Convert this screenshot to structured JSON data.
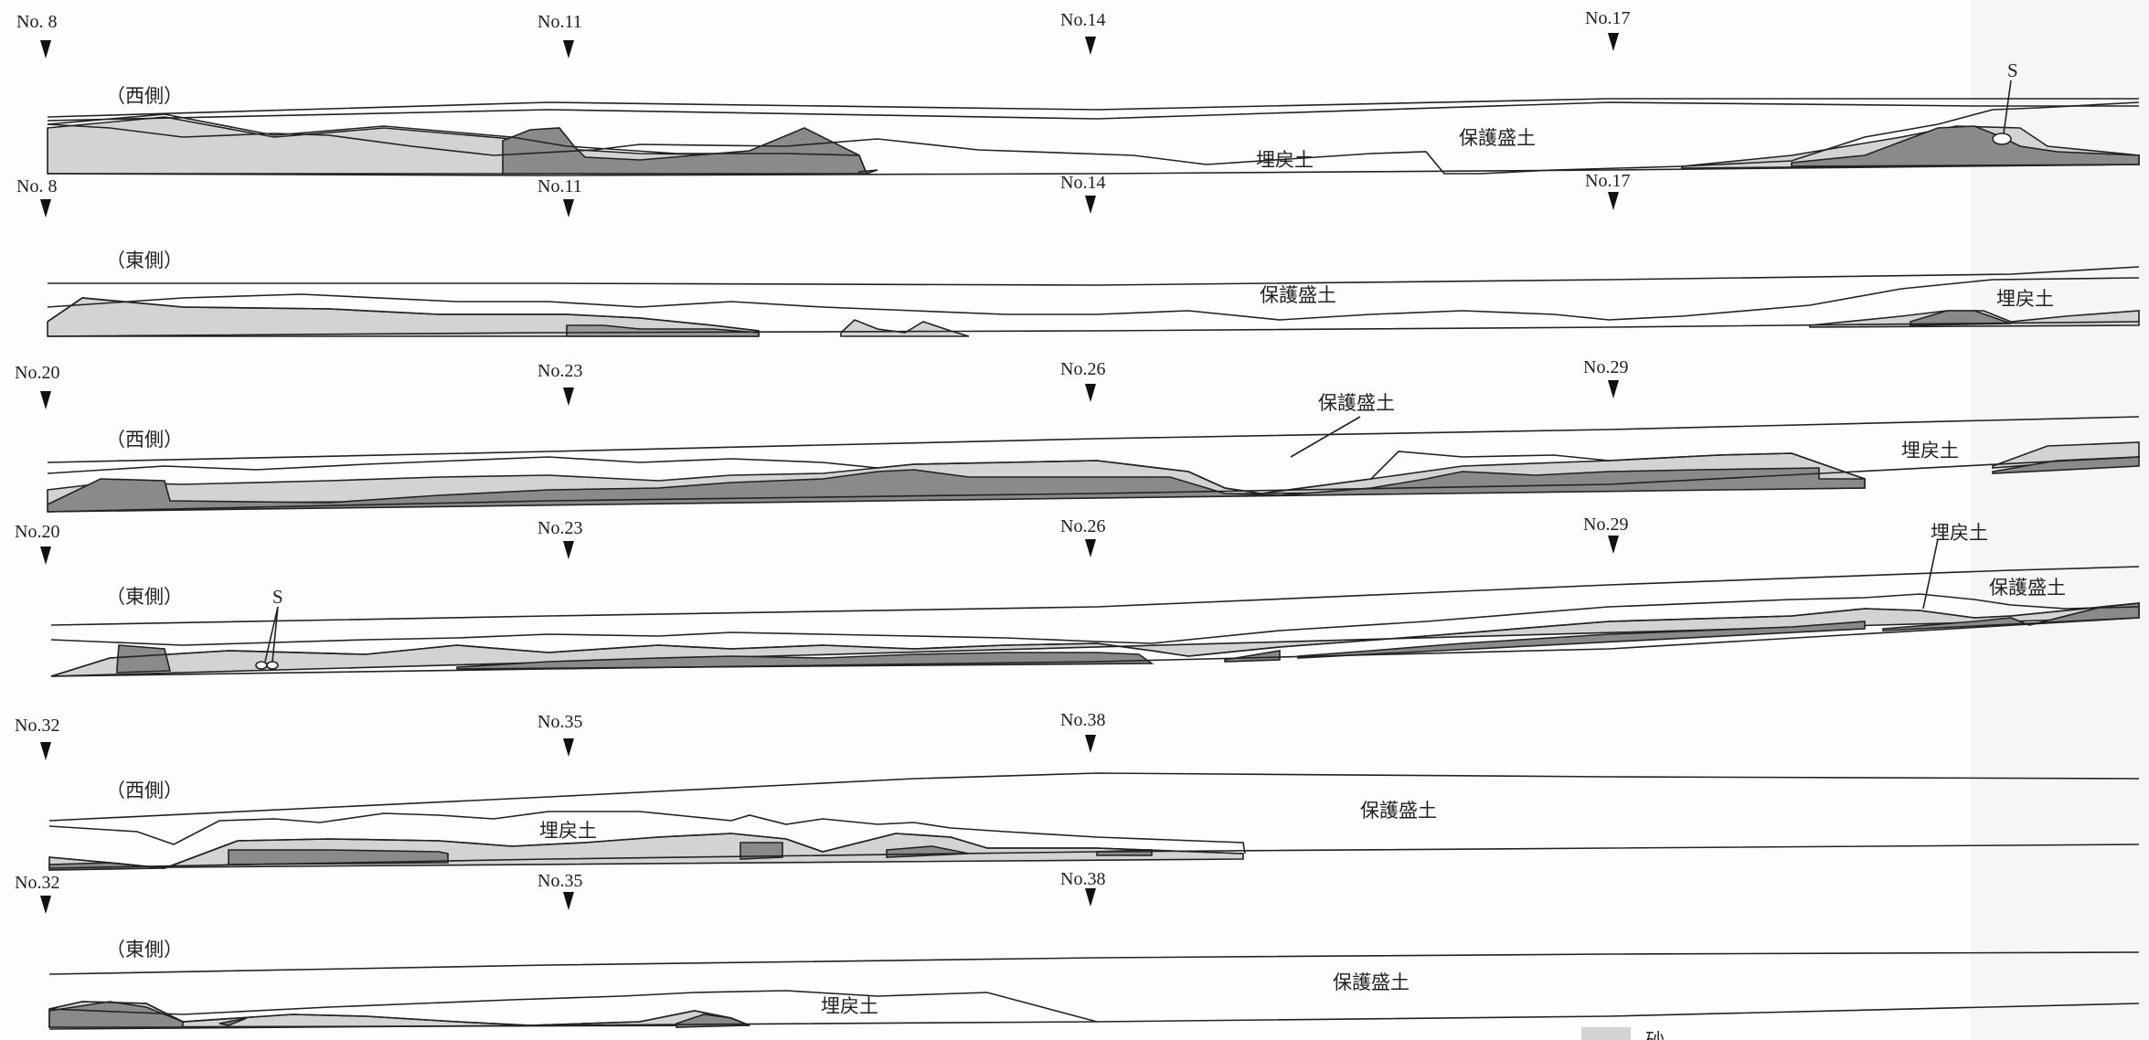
{
  "colors": {
    "outline": "#222222",
    "layer_light": "#d3d3d3",
    "layer_mid": "#b6b6b6",
    "layer_dark": "#8a8a8a",
    "background": "#fdfdfd"
  },
  "stations": {
    "row1": [
      "No. 8",
      "No.11",
      "No.14",
      "No.17"
    ],
    "row2": [
      "No. 8",
      "No.11",
      "No.14",
      "No.17"
    ],
    "row3": [
      "No.20",
      "No.23",
      "No.26",
      "No.29"
    ],
    "row4": [
      "No.20",
      "No.23",
      "No.26",
      "No.29"
    ],
    "row5": [
      "No.32",
      "No.35",
      "No.38"
    ],
    "row6": [
      "No.32",
      "No.35",
      "No.38"
    ]
  },
  "sides": {
    "west": "（西側）",
    "east": "（東側）"
  },
  "soil_labels": {
    "backfill": "埋戻土",
    "protective_fill": "保護盛土",
    "stone_marker": "S"
  },
  "legend": {
    "label": "砂"
  }
}
